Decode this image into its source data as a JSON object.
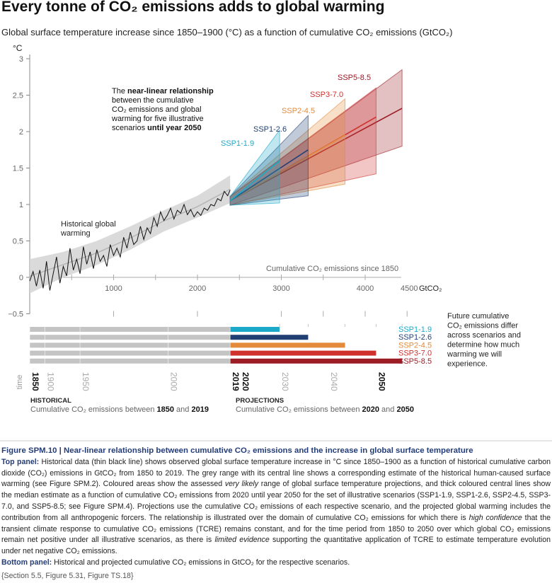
{
  "title": "Every tonne of CO₂ emissions adds to global warming",
  "subtitle": "Global surface temperature increase since 1850–1900 (°C) as a function of cumulative CO₂ emissions (GtCO₂)",
  "chart_data": {
    "type": "line",
    "ylabel": "°C",
    "y_ticks": [
      "3",
      "2.5",
      "2",
      "1.5",
      "1",
      "0.5",
      "0",
      "−0.5"
    ],
    "ylim": [
      -0.5,
      3
    ],
    "xlim": [
      0,
      4500
    ],
    "x_ticks": [
      "1000",
      "2000",
      "3000",
      "4000",
      "4500"
    ],
    "x_unit": "GtCO₂",
    "x_axis_label": "Cumulative CO₂ emissions since 1850",
    "historical": {
      "name": "Historical global warming",
      "x": [
        0,
        40,
        80,
        120,
        160,
        200,
        240,
        280,
        320,
        360,
        400,
        440,
        480,
        520,
        560,
        600,
        640,
        680,
        720,
        760,
        800,
        840,
        880,
        920,
        960,
        1000,
        1040,
        1080,
        1120,
        1160,
        1200,
        1240,
        1280,
        1320,
        1360,
        1400,
        1440,
        1480,
        1520,
        1560,
        1600,
        1640,
        1680,
        1720,
        1760,
        1800,
        1840,
        1880,
        1920,
        1960,
        2000,
        2040,
        2080,
        2120,
        2160,
        2200,
        2240,
        2280,
        2320,
        2360,
        2390
      ],
      "y": [
        -0.05,
        0.08,
        -0.12,
        0.1,
        -0.15,
        0.22,
        -0.18,
        0.05,
        0.28,
        -0.08,
        0.15,
        0.02,
        0.4,
        0.1,
        0.25,
        0.05,
        0.42,
        0.18,
        0.35,
        0.12,
        0.38,
        0.22,
        0.3,
        0.15,
        0.45,
        0.3,
        0.4,
        0.28,
        0.55,
        0.4,
        0.62,
        0.45,
        0.5,
        0.7,
        0.52,
        0.68,
        0.6,
        0.82,
        0.7,
        0.9,
        0.78,
        0.85,
        0.95,
        0.8,
        0.92,
        0.88,
        1.0,
        0.86,
        0.93,
        0.83,
        0.9,
        0.85,
        0.95,
        0.92,
        1.0,
        0.98,
        1.08,
        1.05,
        1.18,
        1.12,
        1.2
      ],
      "band_x": [
        0,
        400,
        800,
        1200,
        1600,
        2000,
        2390
      ],
      "band_low": [
        -0.22,
        0.0,
        0.17,
        0.38,
        0.63,
        0.82,
        1.02
      ],
      "band_high": [
        0.25,
        0.35,
        0.5,
        0.7,
        0.92,
        1.12,
        1.4
      ]
    },
    "annotation": "The near-linear relationship between the cumulative CO₂ emissions and global warming for five illustrative scenarios until year 2050",
    "annotation_parts": {
      "line1_a": "The ",
      "line1_b": "near-linear relationship",
      "line2": "between the cumulative",
      "line3": "CO₂ emissions and global",
      "line4": "warming for five illustrative",
      "line5_a": "scenarios ",
      "line5_b": "until year 2050"
    },
    "series": [
      {
        "name": "SSP1-1.9",
        "color": "#1ca9c9",
        "x_start": 2390,
        "x_end": 2980,
        "y_start": 1.05,
        "y_end": 1.6,
        "lo_end": 1.02,
        "hi_end": 2.02
      },
      {
        "name": "SSP1-2.6",
        "color": "#223f74",
        "x_start": 2390,
        "x_end": 3320,
        "y_start": 1.05,
        "y_end": 1.75,
        "lo_end": 1.12,
        "hi_end": 2.22
      },
      {
        "name": "SSP2-4.5",
        "color": "#e38b3a",
        "x_start": 2390,
        "x_end": 3760,
        "y_start": 1.05,
        "y_end": 1.95,
        "lo_end": 1.28,
        "hi_end": 2.45
      },
      {
        "name": "SSP3-7.0",
        "color": "#d0312d",
        "x_start": 2390,
        "x_end": 4130,
        "y_start": 1.05,
        "y_end": 2.2,
        "lo_end": 1.42,
        "hi_end": 2.6
      },
      {
        "name": "SSP5-8.5",
        "color": "#9b1c24",
        "x_start": 2390,
        "x_end": 4440,
        "y_start": 1.05,
        "y_end": 2.32,
        "lo_end": 1.8,
        "hi_end": 2.85
      }
    ]
  },
  "bottom_panel": {
    "bars": [
      {
        "name": "SSP1-1.9",
        "color": "#1ca9c9",
        "end": 2980
      },
      {
        "name": "SSP1-2.6",
        "color": "#223f74",
        "end": 3320
      },
      {
        "name": "SSP2-4.5",
        "color": "#e38b3a",
        "end": 3760
      },
      {
        "name": "SSP3-7.0",
        "color": "#d0312d",
        "end": 4130
      },
      {
        "name": "SSP5-8.5",
        "color": "#9b1c24",
        "end": 4440
      }
    ],
    "time_label": "time",
    "years_hist": [
      {
        "label": "1850",
        "x": 0,
        "bold": true
      },
      {
        "label": "1900",
        "x": 180,
        "bold": false
      },
      {
        "label": "1950",
        "x": 600,
        "bold": false
      },
      {
        "label": "2000",
        "x": 1650,
        "bold": false
      },
      {
        "label": "2019",
        "x": 2390,
        "bold": true
      }
    ],
    "years_proj": [
      {
        "label": "2020",
        "x": 2390,
        "bold": true
      },
      {
        "label": "2030",
        "x": 2980,
        "bold": false
      },
      {
        "label": "2040",
        "x": 3560,
        "bold": false
      },
      {
        "label": "2050",
        "x": 4130,
        "bold": true
      }
    ],
    "future_note": [
      "Future cumulative",
      "CO₂ emissions differ",
      "across scenarios and",
      "determine how much",
      "warming we will",
      "experience."
    ],
    "historical_heading": "HISTORICAL",
    "historical_text_a": "Cumulative CO₂ emissions between ",
    "historical_text_b": "1850",
    "historical_text_c": " and ",
    "historical_text_d": "2019",
    "projections_heading": "PROJECTIONS",
    "projections_text_a": "Cumulative CO₂ emissions between ",
    "projections_text_b": "2020",
    "projections_text_c": " and ",
    "projections_text_d": "2050"
  },
  "caption": {
    "figure_title": "Figure SPM.10 | Near-linear relationship between cumulative CO₂ emissions and the increase in global surface temperature",
    "top_label": "Top panel:",
    "top_text_1": " Historical data (thin black line) shows observed global surface temperature increase in °C since 1850–1900 as a function of historical cumulative carbon dioxide (CO₂) emissions in GtCO₂ from 1850 to 2019. The grey range with its central line shows a corresponding estimate of the historical human-caused surface warming (see Figure SPM.2). Coloured areas show the assessed ",
    "top_italic_1": "very likely",
    "top_text_2": " range of global surface temperature projections, and thick coloured central lines show the median estimate as a function of cumulative CO₂ emissions from 2020 until year 2050 for the set of illustrative scenarios (SSP1-1.9, SSP1-2.6, SSP2-4.5, SSP3-7.0, and SSP5-8.5; see Figure SPM.4). Projections use the cumulative CO₂ emissions of each respective scenario, and the projected global warming includes the contribution from all anthropogenic forcers. The relationship is illustrated over the domain of cumulative CO₂ emissions for which there is ",
    "top_italic_2": "high confidence",
    "top_text_3": " that the transient climate response to cumulative CO₂ emissions (TCRE) remains constant, and for the time period from 1850 to 2050 over which global CO₂ emissions remain net positive under all illustrative scenarios, as there is ",
    "top_italic_3": "limited evidence",
    "top_text_4": " supporting the quantitative application of TCRE to estimate temperature evolution under net negative CO₂ emissions.",
    "bottom_label": "Bottom panel:",
    "bottom_text": " Historical and projected cumulative CO₂ emissions in GtCO₂ for the respective scenarios.",
    "reference": "{Section 5.5, Figure 5.31, Figure TS.18}"
  }
}
